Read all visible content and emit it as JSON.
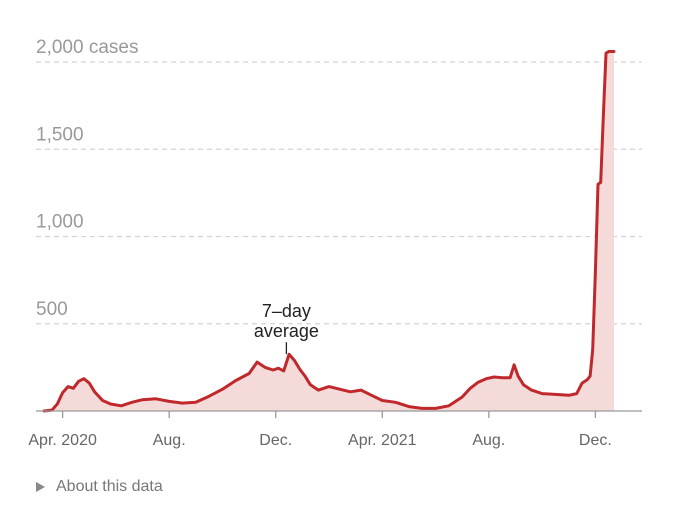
{
  "chart_data": {
    "type": "area",
    "title": "",
    "ylabel": "cases",
    "xlabel": "",
    "ylim": [
      0,
      2000
    ],
    "xlim": [
      0,
      22.75
    ],
    "x_unit": "months since Mar. 1, 2020",
    "grid": true,
    "yticks": [
      {
        "value": 500,
        "label": "500"
      },
      {
        "value": 1000,
        "label": "1,000"
      },
      {
        "value": 1500,
        "label": "1,500"
      },
      {
        "value": 2000,
        "label": "2,000 cases"
      }
    ],
    "xticks": [
      {
        "value": 1,
        "label": "Apr. 2020"
      },
      {
        "value": 5,
        "label": "Aug."
      },
      {
        "value": 9,
        "label": "Dec."
      },
      {
        "value": 13,
        "label": "Apr. 2021"
      },
      {
        "value": 17,
        "label": "Aug."
      },
      {
        "value": 21,
        "label": "Dec."
      }
    ],
    "series": [
      {
        "name": "7-day average",
        "color": "#c0282b",
        "fill": "#f5dada",
        "x": [
          0.3,
          0.6,
          0.8,
          1.0,
          1.2,
          1.4,
          1.6,
          1.8,
          2.0,
          2.2,
          2.5,
          2.8,
          3.2,
          3.6,
          4.0,
          4.5,
          5.0,
          5.5,
          6.0,
          6.5,
          7.0,
          7.5,
          8.0,
          8.3,
          8.6,
          8.9,
          9.1,
          9.3,
          9.5,
          9.7,
          9.9,
          10.1,
          10.3,
          10.6,
          11.0,
          11.4,
          11.8,
          12.2,
          12.6,
          13.0,
          13.5,
          14.0,
          14.5,
          15.0,
          15.5,
          16.0,
          16.3,
          16.6,
          16.9,
          17.2,
          17.5,
          17.8,
          17.95,
          18.1,
          18.3,
          18.6,
          19.0,
          19.5,
          20.0,
          20.3,
          20.5,
          20.7,
          20.8,
          20.9,
          21.0,
          21.1,
          21.2,
          21.3,
          21.4,
          21.5,
          21.6,
          21.7
        ],
        "values": [
          0,
          5,
          40,
          105,
          140,
          130,
          170,
          185,
          160,
          110,
          60,
          40,
          30,
          50,
          65,
          70,
          55,
          45,
          50,
          85,
          125,
          175,
          215,
          280,
          250,
          235,
          245,
          230,
          325,
          290,
          240,
          200,
          150,
          120,
          140,
          125,
          110,
          120,
          90,
          60,
          50,
          25,
          15,
          15,
          30,
          80,
          130,
          165,
          185,
          195,
          190,
          190,
          265,
          200,
          150,
          120,
          100,
          95,
          90,
          100,
          160,
          180,
          200,
          350,
          800,
          1300,
          1310,
          1700,
          2050,
          2060,
          2060,
          2060
        ]
      }
    ],
    "annotations": [
      {
        "lines": [
          "7–day",
          "average"
        ],
        "x": 9.4,
        "y": 320
      }
    ]
  },
  "about": {
    "label": "About this data"
  }
}
